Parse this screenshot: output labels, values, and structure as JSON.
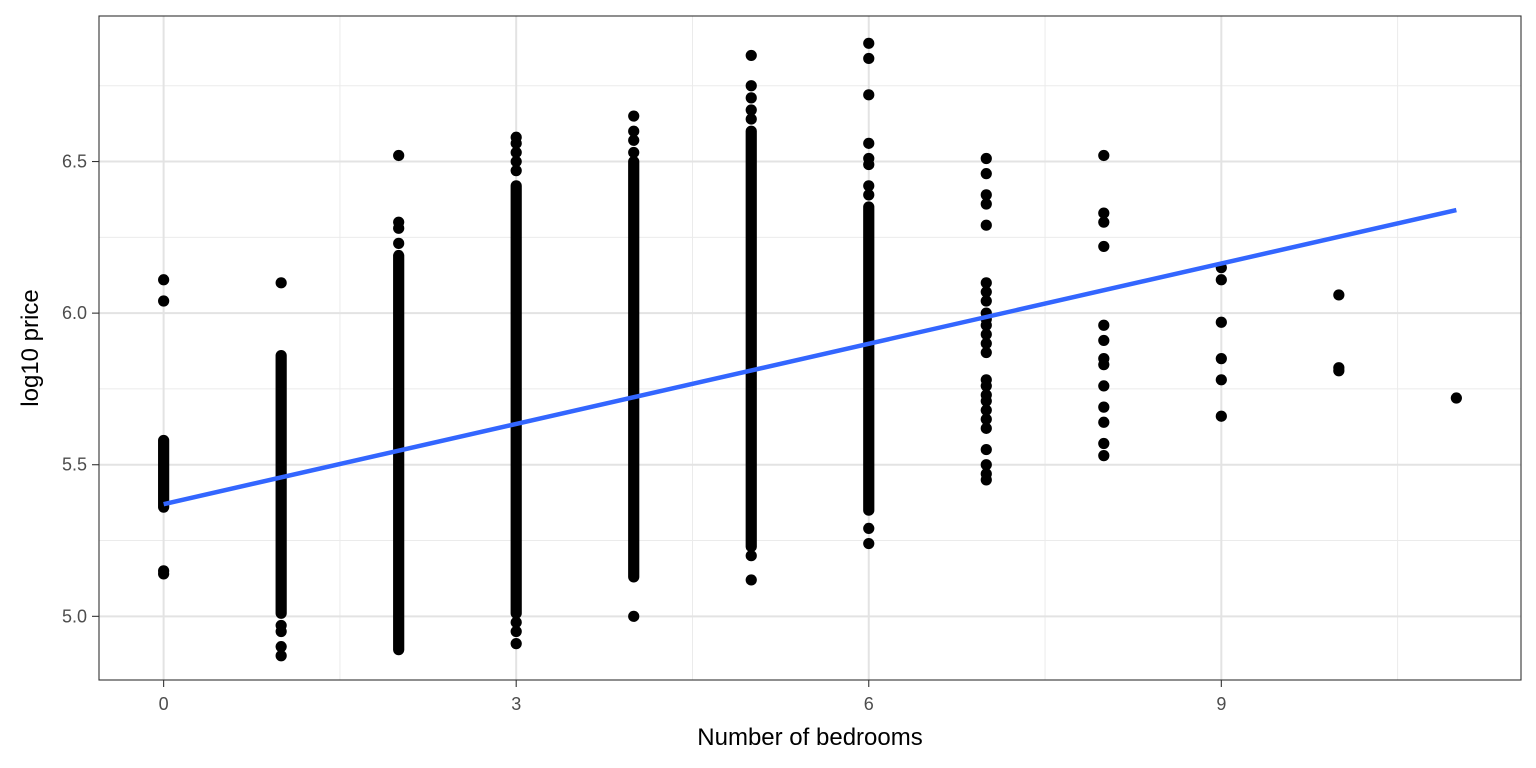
{
  "chart_data": {
    "type": "scatter",
    "title": "",
    "xlabel": "Number of bedrooms",
    "ylabel": "log10 price",
    "xlim": [
      -0.55,
      11.55
    ],
    "ylim": [
      4.79,
      6.98
    ],
    "x_major_ticks": [
      0,
      3,
      6,
      9
    ],
    "x_tick_labels": [
      "0",
      "3",
      "6",
      "9"
    ],
    "x_minor_ticks": [
      1.5,
      4.5,
      7.5,
      10.5
    ],
    "y_major_ticks": [
      5.0,
      5.5,
      6.0,
      6.5
    ],
    "y_tick_labels": [
      "5.0",
      "5.5",
      "6.0",
      "6.5"
    ],
    "y_minor_ticks": [
      5.25,
      5.75,
      6.25,
      6.75
    ],
    "grid": true,
    "legend": "none",
    "point_color": "#000000",
    "line_color": "#3366ff",
    "columns": [
      {
        "x": 0,
        "min": 5.36,
        "max": 5.58,
        "outliers": [
          6.11,
          6.04,
          5.15,
          5.14
        ]
      },
      {
        "x": 1,
        "min": 5.01,
        "max": 5.86,
        "outliers": [
          6.1,
          4.97,
          4.95,
          4.9,
          4.87
        ]
      },
      {
        "x": 2,
        "min": 4.89,
        "max": 6.19,
        "outliers": [
          6.52,
          6.3,
          6.28,
          6.23
        ]
      },
      {
        "x": 3,
        "min": 5.01,
        "max": 6.42,
        "outliers": [
          6.58,
          6.56,
          6.53,
          6.5,
          6.47,
          4.98,
          4.95,
          4.91
        ]
      },
      {
        "x": 4,
        "min": 5.13,
        "max": 6.5,
        "outliers": [
          6.65,
          6.6,
          6.57,
          6.53,
          5.0
        ]
      },
      {
        "x": 5,
        "min": 5.23,
        "max": 6.6,
        "outliers": [
          6.85,
          6.75,
          6.71,
          6.67,
          6.64,
          5.2,
          5.12
        ]
      },
      {
        "x": 6,
        "min": 5.35,
        "max": 6.35,
        "outliers": [
          6.89,
          6.84,
          6.72,
          6.56,
          6.51,
          6.49,
          6.42,
          6.39,
          5.29,
          5.24
        ]
      },
      {
        "x": 7,
        "points": [
          6.51,
          6.46,
          6.39,
          6.36,
          6.29,
          6.1,
          6.07,
          6.04,
          6.0,
          5.98,
          5.96,
          5.93,
          5.9,
          5.87,
          5.78,
          5.76,
          5.73,
          5.71,
          5.68,
          5.65,
          5.62,
          5.55,
          5.5,
          5.47,
          5.45
        ]
      },
      {
        "x": 8,
        "points": [
          6.52,
          6.33,
          6.3,
          6.22,
          5.96,
          5.91,
          5.85,
          5.83,
          5.76,
          5.69,
          5.64,
          5.57,
          5.53
        ]
      },
      {
        "x": 9,
        "points": [
          6.15,
          6.11,
          5.97,
          5.85,
          5.78,
          5.66
        ]
      },
      {
        "x": 10,
        "points": [
          6.06,
          5.82,
          5.81
        ]
      },
      {
        "x": 11,
        "points": [
          5.72
        ]
      }
    ],
    "trend_line": {
      "x": [
        0,
        11
      ],
      "y": [
        5.37,
        6.34
      ]
    }
  }
}
